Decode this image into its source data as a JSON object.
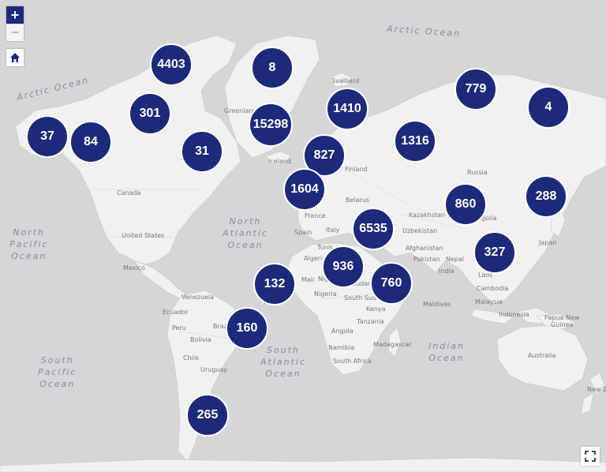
{
  "controls": {
    "zoom_in": "+",
    "zoom_out": "−"
  },
  "clusters": [
    {
      "id": "alaska-west",
      "count": "37"
    },
    {
      "id": "alaska",
      "count": "84"
    },
    {
      "id": "canada-nw",
      "count": "301"
    },
    {
      "id": "canada-arctic",
      "count": "4403"
    },
    {
      "id": "baffin",
      "count": "31"
    },
    {
      "id": "greenland-north",
      "count": "8"
    },
    {
      "id": "greenland",
      "count": "15298"
    },
    {
      "id": "svalbard",
      "count": "1410"
    },
    {
      "id": "norway",
      "count": "827"
    },
    {
      "id": "uk",
      "count": "1604"
    },
    {
      "id": "russia-west",
      "count": "1316"
    },
    {
      "id": "russia-north",
      "count": "779"
    },
    {
      "id": "russia-east",
      "count": "4"
    },
    {
      "id": "mongolia",
      "count": "860"
    },
    {
      "id": "japan",
      "count": "288"
    },
    {
      "id": "europe-south",
      "count": "6535"
    },
    {
      "id": "southeast-asia",
      "count": "327"
    },
    {
      "id": "africa-west",
      "count": "132"
    },
    {
      "id": "africa-central",
      "count": "936"
    },
    {
      "id": "africa-east",
      "count": "760"
    },
    {
      "id": "brazil",
      "count": "160"
    },
    {
      "id": "patagonia",
      "count": "265"
    }
  ],
  "oceans": [
    {
      "id": "arctic-ne",
      "text": "Arctic Ocean"
    },
    {
      "id": "arctic-nw",
      "text": "Arctic Ocean"
    },
    {
      "id": "north-pacific",
      "text": "North\nPacific\nOcean"
    },
    {
      "id": "north-atlantic",
      "text": "North\nAtlantic\nOcean"
    },
    {
      "id": "south-pacific",
      "text": "South\nPacific\nOcean"
    },
    {
      "id": "south-atlantic",
      "text": "South\nAtlantic\nOcean"
    },
    {
      "id": "indian",
      "text": "Indian\nOcean"
    }
  ],
  "places": [
    {
      "id": "svalbard",
      "text": "Svalbard"
    },
    {
      "id": "greenland",
      "text": "Greenland"
    },
    {
      "id": "iceland",
      "text": "Iceland"
    },
    {
      "id": "finland",
      "text": "Finland"
    },
    {
      "id": "russia",
      "text": "Russia"
    },
    {
      "id": "canada",
      "text": "Canada"
    },
    {
      "id": "belarus",
      "text": "Belarus"
    },
    {
      "id": "france",
      "text": "France"
    },
    {
      "id": "kazakhstan",
      "text": "Kazakhstan"
    },
    {
      "id": "mongolia",
      "text": "ngolia"
    },
    {
      "id": "united-states",
      "text": "United States"
    },
    {
      "id": "spain",
      "text": "Spain"
    },
    {
      "id": "italy",
      "text": "Italy"
    },
    {
      "id": "uzbekistan",
      "text": "Uzbekistan"
    },
    {
      "id": "japan",
      "text": "Japan"
    },
    {
      "id": "tunisia",
      "text": "Tunis"
    },
    {
      "id": "afghanistan",
      "text": "Afghanistan"
    },
    {
      "id": "mexico",
      "text": "Mexico"
    },
    {
      "id": "algeria",
      "text": "Algeri"
    },
    {
      "id": "pakistan",
      "text": "Pakistan"
    },
    {
      "id": "nepal",
      "text": "Nepal"
    },
    {
      "id": "laos",
      "text": "Laos"
    },
    {
      "id": "india",
      "text": "India"
    },
    {
      "id": "mali",
      "text": "Mali"
    },
    {
      "id": "niger",
      "text": "Nig"
    },
    {
      "id": "sudan",
      "text": "Sudan"
    },
    {
      "id": "cambodia",
      "text": "Cambodia"
    },
    {
      "id": "venezuela",
      "text": "Venezuela"
    },
    {
      "id": "nigeria",
      "text": "Nigeria"
    },
    {
      "id": "south-sudan",
      "text": "South Sud"
    },
    {
      "id": "maldives",
      "text": "Maldives"
    },
    {
      "id": "malaysia",
      "text": "Malaysia"
    },
    {
      "id": "ecuador",
      "text": "Ecuador"
    },
    {
      "id": "kenya",
      "text": "Kenya"
    },
    {
      "id": "indonesia",
      "text": "Indonesia"
    },
    {
      "id": "papua",
      "text": "Papua New\nGuinea"
    },
    {
      "id": "peru",
      "text": "Peru"
    },
    {
      "id": "brazil",
      "text": "Braz"
    },
    {
      "id": "tanzania",
      "text": "Tanzania"
    },
    {
      "id": "angola",
      "text": "Angola"
    },
    {
      "id": "bolivia",
      "text": "Bolivia"
    },
    {
      "id": "madagascar",
      "text": "Madagascar"
    },
    {
      "id": "namibia",
      "text": "Namibia"
    },
    {
      "id": "chile",
      "text": "Chile"
    },
    {
      "id": "australia",
      "text": "Australia"
    },
    {
      "id": "south-africa",
      "text": "South Africa"
    },
    {
      "id": "uruguay",
      "text": "Uruguay"
    },
    {
      "id": "new-zealand",
      "text": "New Ze"
    }
  ]
}
